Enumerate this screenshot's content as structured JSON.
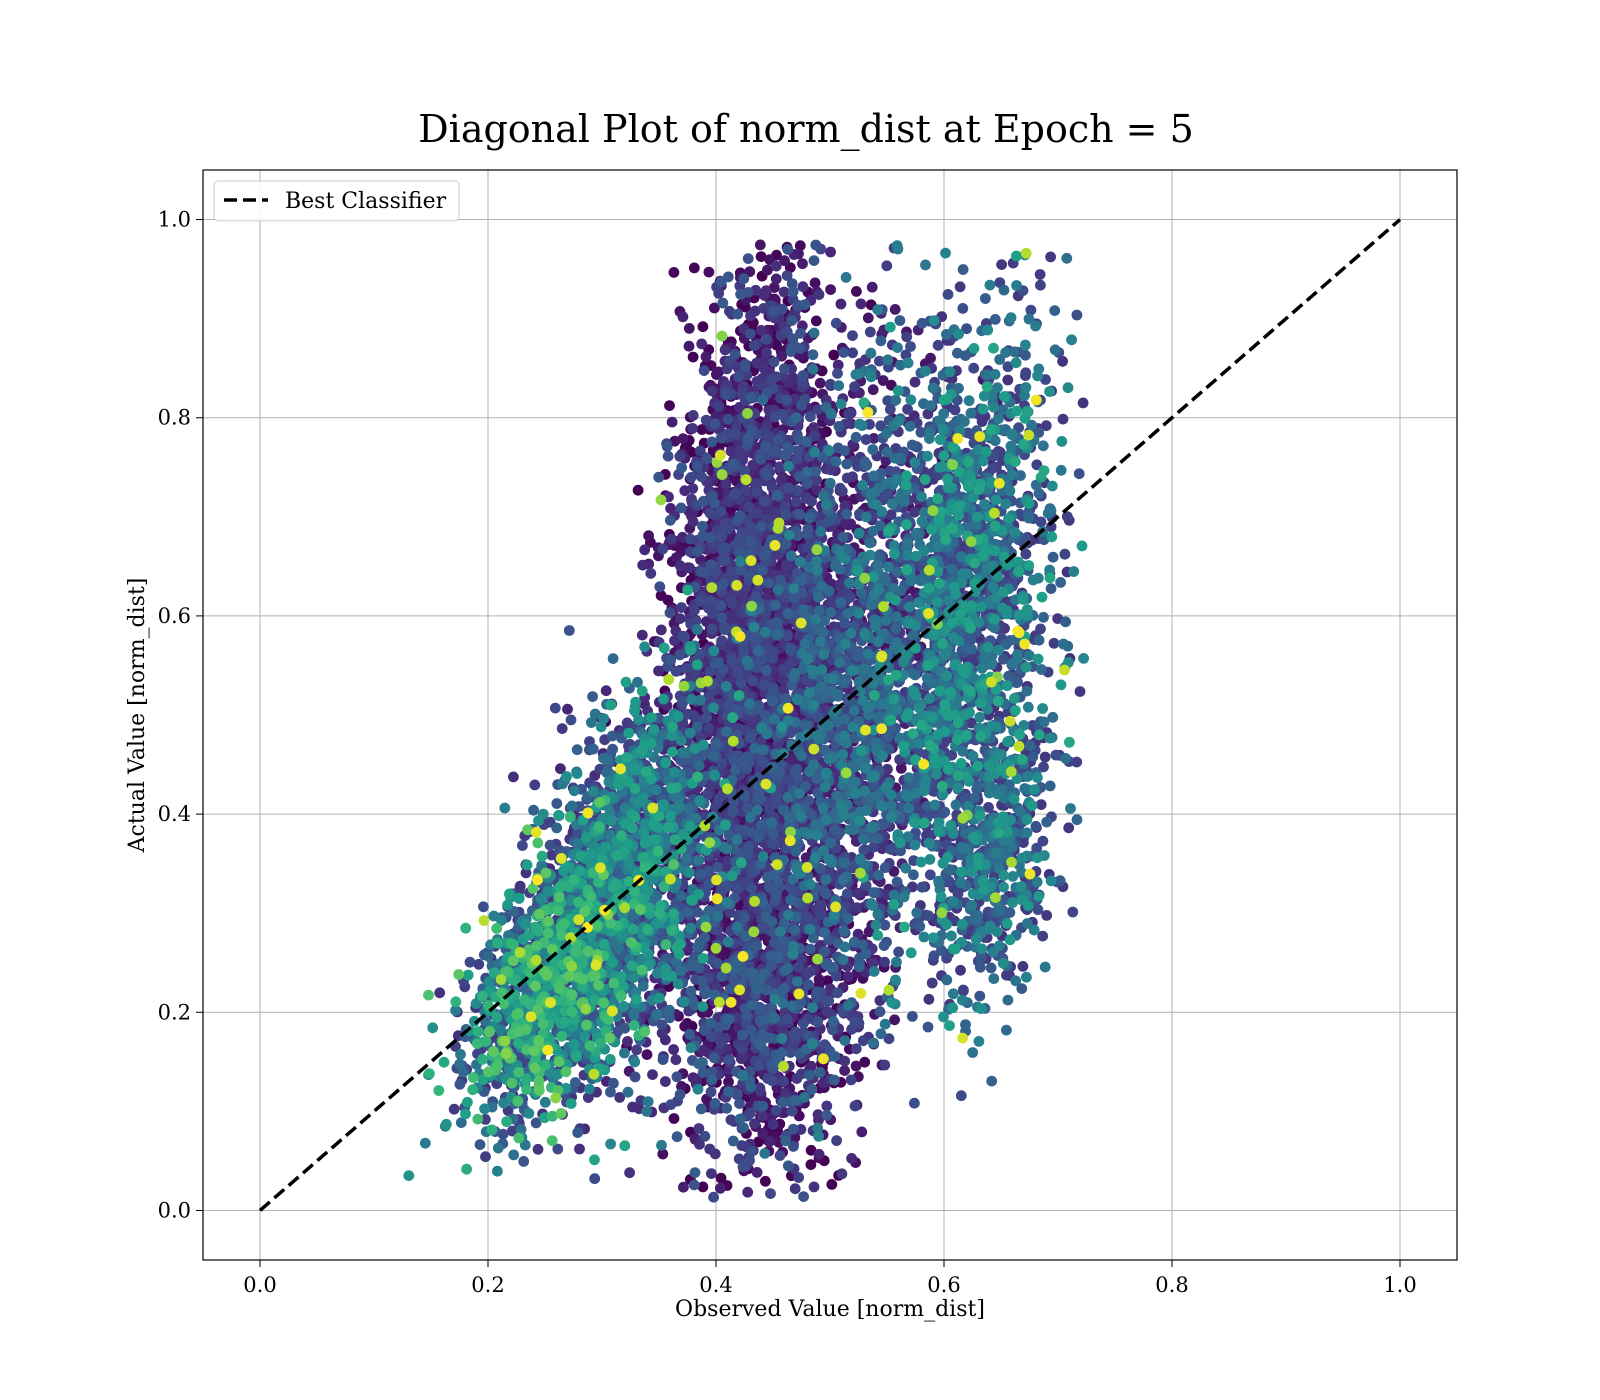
{
  "chart_data": {
    "type": "scatter",
    "title": "Diagonal Plot of norm_dist at Epoch = 5",
    "xlabel": "Observed Value [norm_dist]",
    "ylabel": "Actual Value [norm_dist]",
    "xlim": [
      -0.05,
      1.05
    ],
    "ylim": [
      -0.05,
      1.05
    ],
    "xticks": [
      "0.0",
      "0.2",
      "0.4",
      "0.6",
      "0.8",
      "1.0"
    ],
    "yticks": [
      "0.0",
      "0.2",
      "0.4",
      "0.6",
      "0.8",
      "1.0"
    ],
    "grid": true,
    "legend": {
      "position": "top-left",
      "entries": [
        "Best Classifier"
      ]
    },
    "colormap": "viridis",
    "colors": {
      "line": "#000000",
      "grid": "#b0b0b0",
      "viridis": [
        "#440154",
        "#482878",
        "#3e4989",
        "#31688e",
        "#26828e",
        "#1f9e89",
        "#35b779",
        "#6ece58",
        "#b5de2b",
        "#fde725"
      ]
    },
    "series": [
      {
        "name": "Best Classifier",
        "kind": "line",
        "style": "dashed",
        "x": [
          0.0,
          1.0
        ],
        "y": [
          0.0,
          1.0
        ]
      },
      {
        "kind": "scatter-cloud",
        "clusters": [
          {
            "cx": 0.26,
            "cy": 0.24,
            "sx": 0.04,
            "sy": 0.075,
            "rho": 0.55,
            "n": 1500,
            "cmin": 0.15,
            "cmax": 0.75
          },
          {
            "cx": 0.33,
            "cy": 0.34,
            "sx": 0.04,
            "sy": 0.1,
            "rho": 0.35,
            "n": 1400,
            "cmin": 0.1,
            "cmax": 0.6
          },
          {
            "cx": 0.43,
            "cy": 0.62,
            "sx": 0.035,
            "sy": 0.17,
            "rho": 0.2,
            "n": 2800,
            "cmin": 0.0,
            "cmax": 0.28
          },
          {
            "cx": 0.44,
            "cy": 0.24,
            "sx": 0.04,
            "sy": 0.1,
            "rho": 0.0,
            "n": 1500,
            "cmin": 0.0,
            "cmax": 0.32
          },
          {
            "cx": 0.52,
            "cy": 0.52,
            "sx": 0.045,
            "sy": 0.16,
            "rho": 0.25,
            "n": 2000,
            "cmin": 0.05,
            "cmax": 0.45
          },
          {
            "cx": 0.62,
            "cy": 0.62,
            "sx": 0.04,
            "sy": 0.15,
            "rho": 0.3,
            "n": 1600,
            "cmin": 0.15,
            "cmax": 0.6
          },
          {
            "cx": 0.64,
            "cy": 0.36,
            "sx": 0.03,
            "sy": 0.08,
            "rho": 0.2,
            "n": 500,
            "cmin": 0.15,
            "cmax": 0.55
          }
        ]
      }
    ]
  }
}
